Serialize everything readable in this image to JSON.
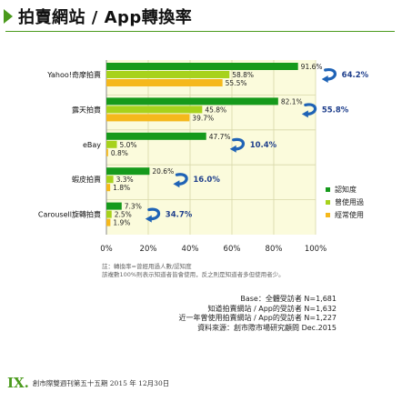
{
  "title": "拍賣網站 / App轉換率",
  "chart_data": {
    "type": "bar",
    "orientation": "horizontal",
    "categories": [
      "Yahoo!奇摩拍賣",
      "露天拍賣",
      "eBay",
      "蝦皮拍賣",
      "Carousell旋轉拍賣"
    ],
    "series": [
      {
        "name": "認知度",
        "color": "#169a1c",
        "values": [
          91.6,
          82.1,
          47.7,
          20.6,
          7.3
        ]
      },
      {
        "name": "曾使用過",
        "color": "#a7d21c",
        "values": [
          58.8,
          45.8,
          5.0,
          3.3,
          2.5
        ]
      },
      {
        "name": "經常使用",
        "color": "#f5b81c",
        "values": [
          55.5,
          39.7,
          0.8,
          1.8,
          1.9
        ]
      }
    ],
    "conversion_rates": [
      64.2,
      55.8,
      10.4,
      16.0,
      34.7
    ],
    "xlim": [
      0,
      100
    ],
    "xticks": [
      "0%",
      "20%",
      "40%",
      "60%",
      "80%",
      "100%"
    ],
    "grid": true,
    "legend_position": "right"
  },
  "notes": {
    "line1": "註：轉換率=曾經用過人數/認知度",
    "line2": "該複數100%則表示知道者皆會使用，反之則是知道者多但使用者少。"
  },
  "base": {
    "line1": "Base：全體受訪者 N=1,681",
    "line2": "知道拍賣網站 / App的受訪者 N=1,632",
    "line3": "近一年曾使用拍賣網站 / App的受訪者 N=1,227",
    "line4": "資料來源：創市際市場研究顧問  Dec.2015"
  },
  "footer": {
    "logo": "IX.",
    "text": "創市際雙週刊第五十五期 2015 年 12月30日"
  }
}
